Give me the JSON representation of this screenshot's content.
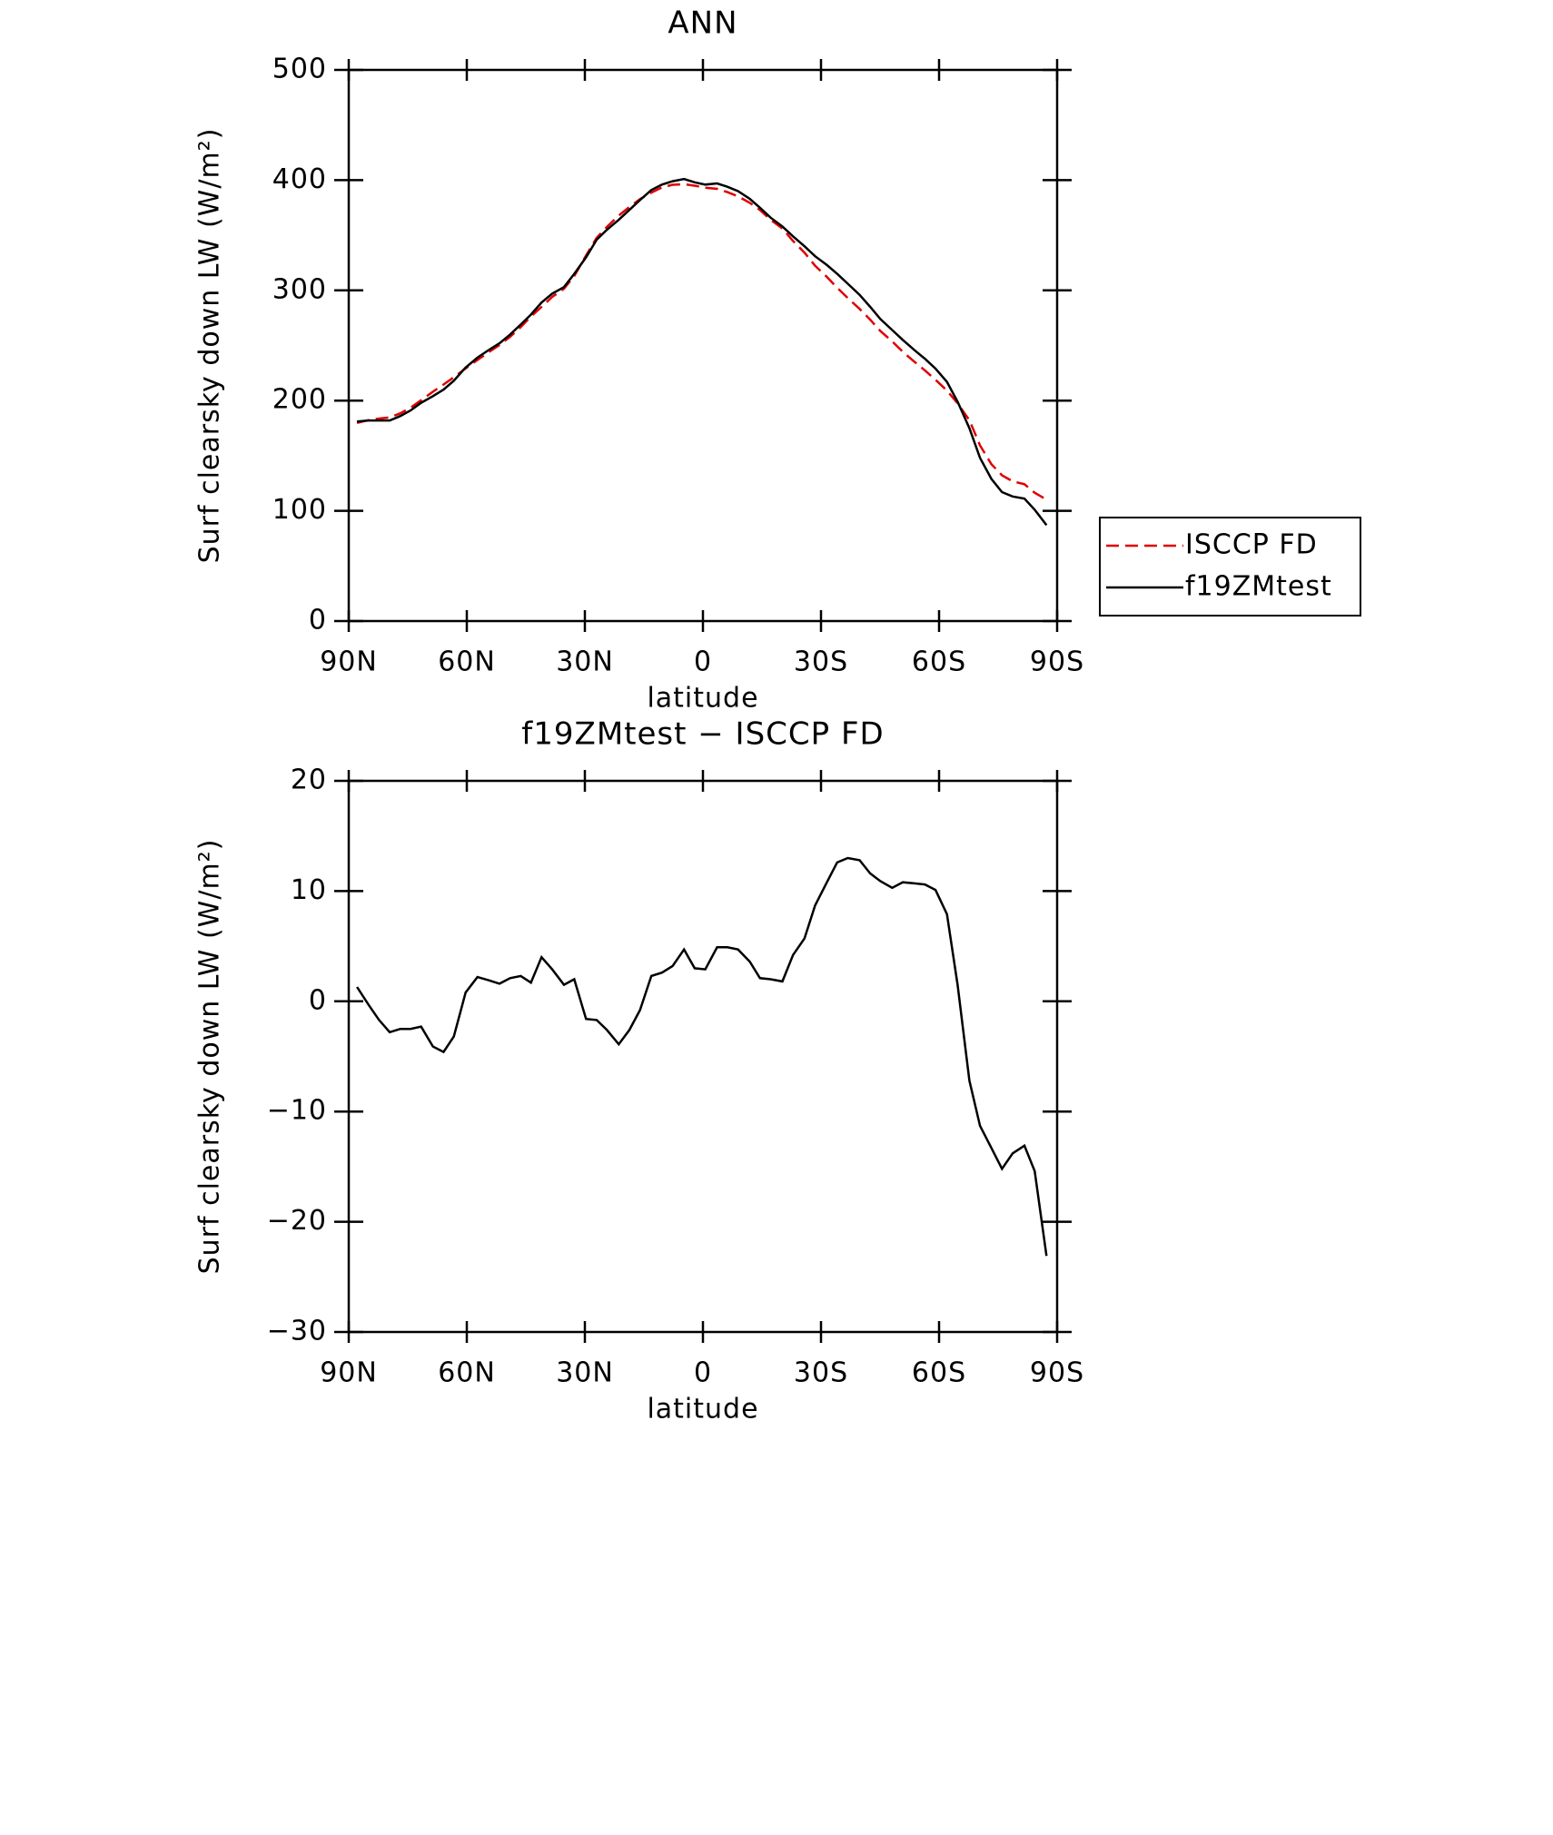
{
  "chart_data": [
    {
      "type": "line",
      "title": "ANN",
      "xlabel": "latitude",
      "ylabel": "Surf clearsky down LW (W/m²)",
      "x": [
        87.9,
        85,
        82.3,
        79.6,
        76.9,
        74.3,
        71.6,
        68.6,
        65.9,
        63.3,
        60.3,
        57.3,
        54.4,
        51.7,
        49,
        46.3,
        43.7,
        41,
        38.3,
        35.3,
        32.7,
        29.7,
        27,
        24.4,
        21.4,
        18.7,
        16,
        13.1,
        10.4,
        7.7,
        4.8,
        2.1,
        -0.6,
        -3.6,
        -6.2,
        -8.9,
        -11.9,
        -14.5,
        -17.2,
        -20.2,
        -22.9,
        -25.8,
        -28.5,
        -31.5,
        -34.1,
        -36.8,
        -39.8,
        -42.5,
        -45.1,
        -48.1,
        -50.8,
        -53.7,
        -56.4,
        -59.1,
        -62,
        -64.7,
        -67.7,
        -70.4,
        -73.3,
        -76,
        -78.7,
        -81.7,
        -84.3,
        -87.3
      ],
      "series": [
        {
          "name": "ISCCP FD",
          "color": "#e00000",
          "dash": true,
          "values": [
            179.7,
            182.3,
            183.7,
            184.8,
            188.5,
            193.5,
            200.3,
            208.1,
            214.6,
            221.2,
            229.2,
            236.8,
            244.1,
            250.4,
            257.9,
            266.7,
            276.3,
            285,
            294.1,
            301.5,
            313,
            331.6,
            347.7,
            357.6,
            367.9,
            375.6,
            382.8,
            388.7,
            393.4,
            395.8,
            396.3,
            395,
            393.1,
            392.1,
            389.1,
            385.3,
            379.4,
            372.9,
            364,
            356.2,
            344.8,
            334.3,
            322.3,
            312.2,
            302.4,
            293,
            283.2,
            273.4,
            263.1,
            253.7,
            244.2,
            235.3,
            227.4,
            218.9,
            209.1,
            197.5,
            182.2,
            159.3,
            142.3,
            132.2,
            126.8,
            124.1,
            116.4,
            110.1
          ]
        },
        {
          "name": "f19ZMtest",
          "color": "#000000",
          "dash": false,
          "values": [
            181,
            182,
            182,
            182,
            186,
            191,
            198,
            204,
            210,
            218,
            230,
            239,
            246,
            252,
            260,
            269,
            278,
            289,
            297,
            303,
            315,
            330,
            346,
            355,
            364,
            373,
            382,
            391,
            396,
            399,
            401,
            398,
            396,
            397,
            394,
            390,
            383,
            375,
            366,
            358,
            349,
            340,
            331,
            323,
            315,
            306,
            296,
            285,
            274,
            264,
            255,
            246,
            238,
            229,
            217,
            199,
            175,
            148,
            129,
            117,
            113,
            111,
            101,
            87
          ]
        }
      ],
      "xlim": [
        90,
        -90
      ],
      "xticks": [
        {
          "value": 90,
          "label": "90N"
        },
        {
          "value": 60,
          "label": "60N"
        },
        {
          "value": 30,
          "label": "30N"
        },
        0,
        {
          "value": -30,
          "label": "30S"
        },
        {
          "value": -60,
          "label": "60S"
        },
        {
          "value": -90,
          "label": "90S"
        }
      ],
      "ylim": [
        0,
        500
      ],
      "yticks": [
        0,
        100,
        200,
        300,
        400,
        500
      ],
      "grid": false,
      "legend": "outside-right"
    },
    {
      "type": "line",
      "title": "f19ZMtest − ISCCP FD",
      "xlabel": "latitude",
      "ylabel": "Surf clearsky down LW (W/m²)",
      "x": [
        87.9,
        85,
        82.3,
        79.6,
        76.9,
        74.3,
        71.6,
        68.6,
        65.9,
        63.3,
        60.3,
        57.3,
        54.4,
        51.7,
        49,
        46.3,
        43.7,
        41,
        38.3,
        35.3,
        32.7,
        29.7,
        27,
        24.4,
        21.4,
        18.7,
        16,
        13.1,
        10.4,
        7.7,
        4.8,
        2.1,
        -0.6,
        -3.6,
        -6.2,
        -8.9,
        -11.9,
        -14.5,
        -17.2,
        -20.2,
        -22.9,
        -25.8,
        -28.5,
        -31.5,
        -34.1,
        -36.8,
        -39.8,
        -42.5,
        -45.1,
        -48.1,
        -50.8,
        -53.7,
        -56.4,
        -59.1,
        -62,
        -64.7,
        -67.7,
        -70.4,
        -73.3,
        -76,
        -78.7,
        -81.7,
        -84.3,
        -87.3
      ],
      "series": [
        {
          "color": "#000000",
          "dash": false,
          "values": [
            1.3,
            -0.3,
            -1.7,
            -2.8,
            -2.5,
            -2.5,
            -2.3,
            -4.1,
            -4.6,
            -3.2,
            0.8,
            2.2,
            1.9,
            1.6,
            2.1,
            2.3,
            1.7,
            4.0,
            2.9,
            1.5,
            2.0,
            -1.6,
            -1.7,
            -2.6,
            -3.9,
            -2.6,
            -0.8,
            2.3,
            2.6,
            3.2,
            4.7,
            3.0,
            2.9,
            4.9,
            4.9,
            4.7,
            3.6,
            2.1,
            2.0,
            1.8,
            4.2,
            5.7,
            8.7,
            10.8,
            12.6,
            13.0,
            12.8,
            11.6,
            10.9,
            10.3,
            10.8,
            10.7,
            10.6,
            10.1,
            7.9,
            1.5,
            -7.2,
            -11.3,
            -13.3,
            -15.2,
            -13.8,
            -13.1,
            -15.4,
            -23.1
          ]
        }
      ],
      "xlim": [
        90,
        -90
      ],
      "xticks": [
        {
          "value": 90,
          "label": "90N"
        },
        {
          "value": 60,
          "label": "60N"
        },
        {
          "value": 30,
          "label": "30N"
        },
        0,
        {
          "value": -30,
          "label": "30S"
        },
        {
          "value": -60,
          "label": "60S"
        },
        {
          "value": -90,
          "label": "90S"
        }
      ],
      "ylim": [
        -30,
        20
      ],
      "yticks": [
        {
          "value": -30,
          "label": "−30"
        },
        {
          "value": -20,
          "label": "−20"
        },
        {
          "value": -10,
          "label": "−10"
        },
        0,
        10,
        20
      ],
      "grid": false
    }
  ]
}
